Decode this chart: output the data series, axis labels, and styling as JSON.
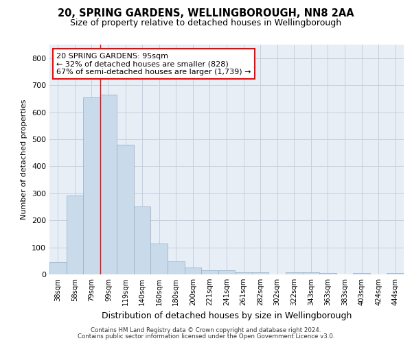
{
  "title_line1": "20, SPRING GARDENS, WELLINGBOROUGH, NN8 2AA",
  "title_line2": "Size of property relative to detached houses in Wellingborough",
  "xlabel": "Distribution of detached houses by size in Wellingborough",
  "ylabel": "Number of detached properties",
  "categories": [
    "38sqm",
    "58sqm",
    "79sqm",
    "99sqm",
    "119sqm",
    "140sqm",
    "160sqm",
    "180sqm",
    "200sqm",
    "221sqm",
    "241sqm",
    "261sqm",
    "282sqm",
    "302sqm",
    "322sqm",
    "343sqm",
    "363sqm",
    "383sqm",
    "403sqm",
    "424sqm",
    "444sqm"
  ],
  "values": [
    45,
    293,
    655,
    666,
    480,
    252,
    114,
    49,
    26,
    14,
    14,
    7,
    7,
    0,
    8,
    8,
    5,
    0,
    5,
    0,
    5
  ],
  "bar_color": "#c9daea",
  "bar_edge_color": "#9ab5cc",
  "grid_color": "#c5cfe0",
  "background_color": "#e8eef6",
  "annotation_text_line1": "20 SPRING GARDENS: 95sqm",
  "annotation_text_line2": "← 32% of detached houses are smaller (828)",
  "annotation_text_line3": "67% of semi-detached houses are larger (1,739) →",
  "vline_bar_index": 3,
  "ylim": [
    0,
    850
  ],
  "yticks": [
    0,
    100,
    200,
    300,
    400,
    500,
    600,
    700,
    800
  ],
  "footer_line1": "Contains HM Land Registry data © Crown copyright and database right 2024.",
  "footer_line2": "Contains public sector information licensed under the Open Government Licence v3.0."
}
